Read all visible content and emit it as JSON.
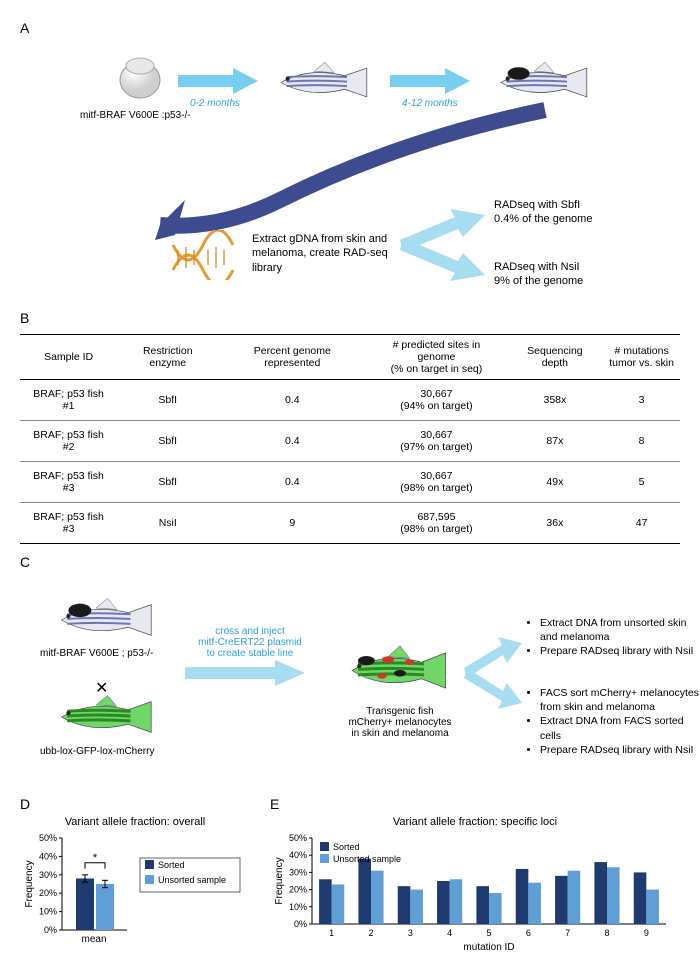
{
  "panelA": {
    "label": "A",
    "genotype_label": "mitf-BRAF V600E :p53-/-",
    "arrow1_label": "0-2 months",
    "arrow2_label": "4-12 months",
    "extract_text": "Extract gDNA from skin and melanoma, create RAD-seq library",
    "rad1_line1": "RADseq with SbfI",
    "rad1_line2": "0.4% of the genome",
    "rad2_line1": "RADseq with NsiI",
    "rad2_line2": "9% of the genome",
    "colors": {
      "arrow_light": "#76cff0",
      "arrow_dark": "#3f4b8f",
      "fish_body": "#e8e9f0",
      "fish_stripe": "#6a76b5",
      "spot": "#1a1a1a",
      "dna_strand": "#e79a2e",
      "dna_rung": "#d67f0f"
    }
  },
  "panelB": {
    "label": "B",
    "columns": [
      "Sample ID",
      "Restriction enzyme",
      "Percent genome represented",
      "# predicted sites in genome\n(% on target in seq)",
      "Sequencing depth",
      "# mutations\ntumor vs. skin"
    ],
    "rows": [
      [
        "BRAF; p53 fish #1",
        "SbfI",
        "0.4",
        "30,667\n(94% on target)",
        "358x",
        "3"
      ],
      [
        "BRAF; p53 fish #2",
        "SbfI",
        "0.4",
        "30,667\n(97% on target)",
        "87x",
        "8"
      ],
      [
        "BRAF; p53 fish #3",
        "SbfI",
        "0.4",
        "30,667\n(98% on target)",
        "49x",
        "5"
      ],
      [
        "BRAF; p53 fish #3",
        "NsiI",
        "9",
        "687,595\n(98% on target)",
        "36x",
        "47"
      ]
    ]
  },
  "panelC": {
    "label": "C",
    "genotype1": "mitf-BRAF V600E ; p53-/-",
    "genotype2": "ubb-lox-GFP-lox-mCherry",
    "cross_text": "cross and inject\nmitf-CreERT22 plasmid\nto create stable line",
    "result_label": "Transgenic fish\nmCherry+ melanocytes\nin skin and melanoma",
    "bullets1": [
      "Extract DNA from unsorted skin and melanoma",
      "Prepare RADseq library with NsiI"
    ],
    "bullets2": [
      "FACS sort mCherry+ melanocytes from skin and melanoma",
      "Extract DNA from FACS sorted cells",
      "Prepare RADseq library with NsiI"
    ],
    "colors": {
      "arrow": "#a7ddf1",
      "fish_green": "#4fb849",
      "fish_green_dark": "#2a8a24",
      "mcherry_spot": "#d6342b"
    }
  },
  "panelD": {
    "label": "D",
    "title": "Variant allele fraction: overall",
    "ylabel": "Frequency",
    "xlabel": "mean",
    "yticks": [
      "0%",
      "10%",
      "20%",
      "30%",
      "40%",
      "50%"
    ],
    "ylim": [
      0,
      50
    ],
    "series": {
      "Sorted": {
        "color": "#1f3a6e",
        "value": 28,
        "err": 2
      },
      "Unsorted sample": {
        "color": "#5f9fd6",
        "value": 25,
        "err": 2
      }
    },
    "sig_marker": "*",
    "bar_width": 0.35,
    "background": "#ffffff"
  },
  "panelE": {
    "label": "E",
    "title": "Variant allele fraction: specific loci",
    "ylabel": "Frequency",
    "xlabel": "mutation ID",
    "yticks": [
      "0%",
      "10%",
      "20%",
      "30%",
      "40%",
      "50%"
    ],
    "ylim": [
      0,
      50
    ],
    "categories": [
      "1",
      "2",
      "3",
      "4",
      "5",
      "6",
      "7",
      "8",
      "9"
    ],
    "series": {
      "Sorted": {
        "color": "#1f3a6e",
        "values": [
          26,
          38,
          22,
          25,
          22,
          32,
          28,
          36,
          30
        ]
      },
      "Unsorted sample": {
        "color": "#5f9fd6",
        "values": [
          23,
          31,
          20,
          26,
          18,
          24,
          31,
          33,
          20
        ]
      }
    },
    "bar_width": 0.35,
    "background": "#ffffff"
  }
}
